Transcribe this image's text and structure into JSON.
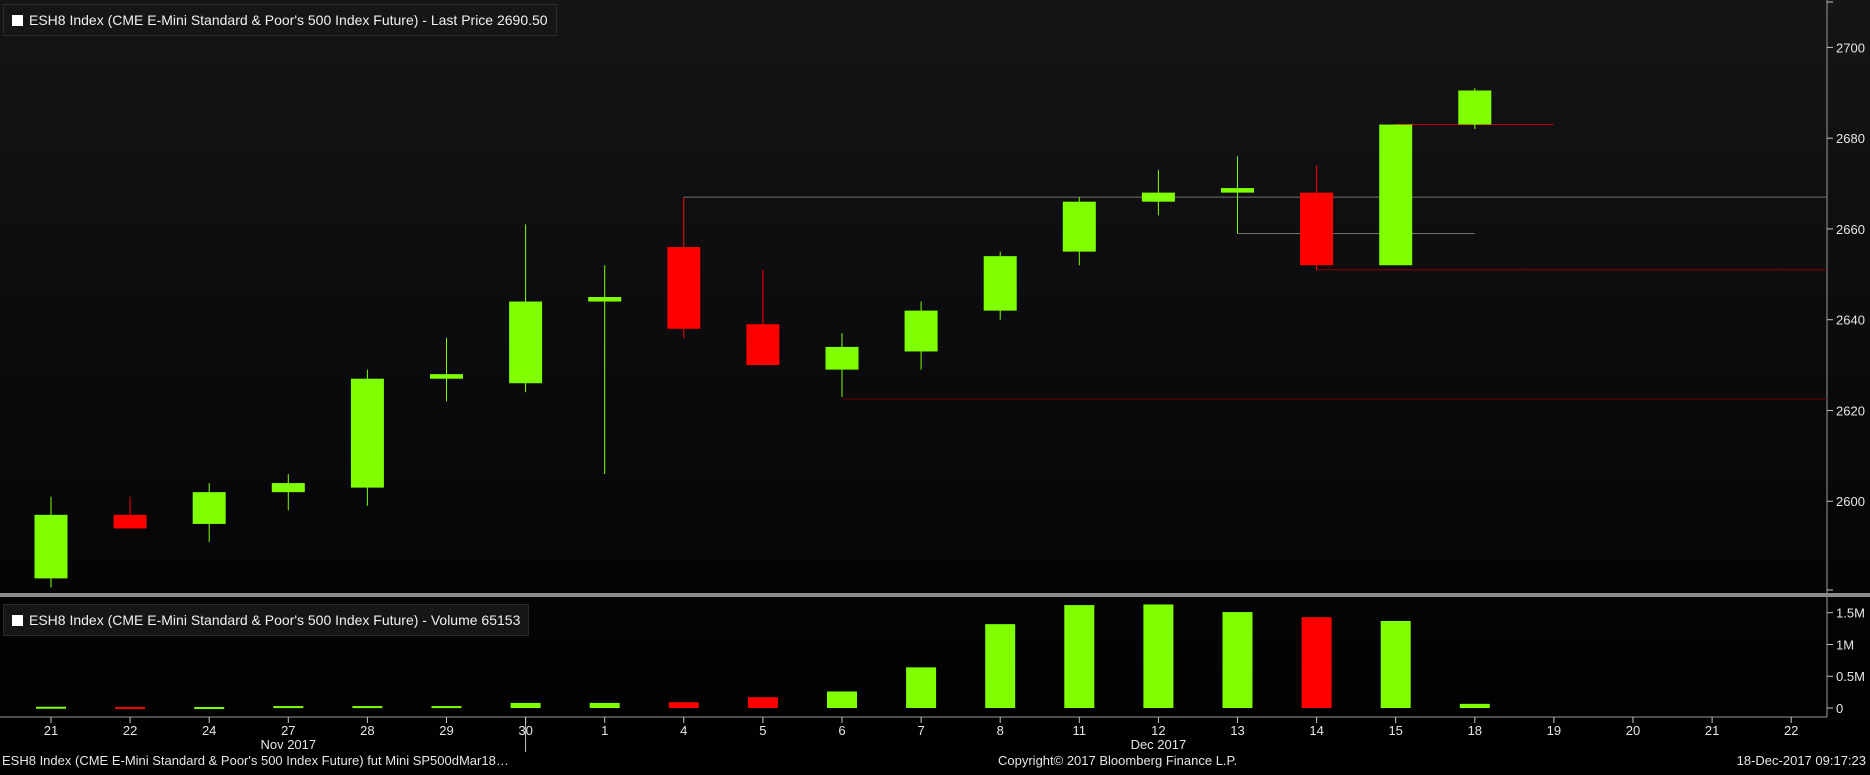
{
  "price_legend": "ESH8 Index (CME E-Mini Standard & Poor's 500 Index Future) - Last Price 2690.50",
  "volume_legend": "ESH8 Index (CME E-Mini Standard & Poor's 500 Index Future) - Volume 65153",
  "footer": {
    "left": "ESH8 Index (CME E-Mini Standard & Poor's 500 Index Future) fut Mini SP500dMar18…",
    "center": "Copyright© 2017 Bloomberg Finance L.P.",
    "right": "18-Dec-2017 09:17:23"
  },
  "colors": {
    "up": "#7fff00",
    "down": "#ff0000",
    "background": "#000000",
    "grid_line": "#707070"
  },
  "chart_data": [
    {
      "type": "candlestick",
      "ylim": [
        2580,
        2710
      ],
      "yticks": [
        2600,
        2620,
        2640,
        2660,
        2680,
        2700
      ],
      "categories": [
        "21",
        "22",
        "24",
        "27",
        "28",
        "29",
        "30",
        "1",
        "4",
        "5",
        "6",
        "7",
        "8",
        "11",
        "12",
        "13",
        "14",
        "15",
        "18",
        "19",
        "20",
        "21",
        "22"
      ],
      "month_labels": [
        {
          "label": "Nov 2017",
          "at": "27"
        },
        {
          "label": "Dec 2017",
          "at": "12"
        }
      ],
      "candles": [
        {
          "date": "21",
          "open": 2583,
          "high": 2601,
          "low": 2581,
          "close": 2597
        },
        {
          "date": "22",
          "open": 2597,
          "high": 2601,
          "low": 2594,
          "close": 2594
        },
        {
          "date": "24",
          "open": 2595,
          "high": 2604,
          "low": 2591,
          "close": 2602
        },
        {
          "date": "27",
          "open": 2602,
          "high": 2606,
          "low": 2598,
          "close": 2604
        },
        {
          "date": "28",
          "open": 2603,
          "high": 2629,
          "low": 2599,
          "close": 2627
        },
        {
          "date": "29",
          "open": 2627,
          "high": 2636,
          "low": 2622,
          "close": 2628
        },
        {
          "date": "30",
          "open": 2626,
          "high": 2661,
          "low": 2624,
          "close": 2644
        },
        {
          "date": "1",
          "open": 2644,
          "high": 2652,
          "low": 2606,
          "close": 2645
        },
        {
          "date": "4",
          "open": 2656,
          "high": 2667,
          "low": 2636,
          "close": 2638
        },
        {
          "date": "5",
          "open": 2639,
          "high": 2651,
          "low": 2630,
          "close": 2630
        },
        {
          "date": "6",
          "open": 2629,
          "high": 2637,
          "low": 2623,
          "close": 2634
        },
        {
          "date": "7",
          "open": 2633,
          "high": 2644,
          "low": 2629,
          "close": 2642
        },
        {
          "date": "8",
          "open": 2642,
          "high": 2655,
          "low": 2640,
          "close": 2654
        },
        {
          "date": "11",
          "open": 2655,
          "high": 2667,
          "low": 2652,
          "close": 2666
        },
        {
          "date": "12",
          "open": 2666,
          "high": 2673,
          "low": 2663,
          "close": 2668
        },
        {
          "date": "13",
          "open": 2668,
          "high": 2676,
          "low": 2659,
          "close": 2669
        },
        {
          "date": "14",
          "open": 2668,
          "high": 2674,
          "low": 2651,
          "close": 2652
        },
        {
          "date": "15",
          "open": 2652,
          "high": 2683,
          "low": 2652,
          "close": 2683
        },
        {
          "date": "18",
          "open": 2683,
          "high": 2691,
          "low": 2682,
          "close": 2690.5
        }
      ],
      "reference_lines": [
        {
          "value": 2667,
          "from": "4",
          "color": "#707070"
        },
        {
          "value": 2659,
          "from": "13",
          "to": "18",
          "color": "#707070"
        },
        {
          "value": 2651,
          "from": "14",
          "color": "#8a0000"
        },
        {
          "value": 2622.5,
          "from": "6",
          "color": "#6a0000"
        },
        {
          "value": 2683,
          "from": "15",
          "to": "19",
          "color": "#c00000"
        }
      ]
    },
    {
      "type": "bar",
      "ylim": [
        0,
        1700000
      ],
      "yticks": [
        {
          "value": 0,
          "label": "0"
        },
        {
          "value": 500000,
          "label": "0.5M"
        },
        {
          "value": 1000000,
          "label": "1M"
        },
        {
          "value": 1500000,
          "label": "1.5M"
        }
      ],
      "categories": [
        "21",
        "22",
        "24",
        "27",
        "28",
        "29",
        "30",
        "1",
        "4",
        "5",
        "6",
        "7",
        "8",
        "11",
        "12",
        "13",
        "14",
        "15",
        "18"
      ],
      "values": [
        20000,
        15000,
        15000,
        30000,
        30000,
        30000,
        80000,
        80000,
        90000,
        170000,
        260000,
        640000,
        1320000,
        1620000,
        1630000,
        1510000,
        1430000,
        1370000,
        65153
      ],
      "direction": [
        "up",
        "down",
        "up",
        "up",
        "up",
        "up",
        "up",
        "up",
        "down",
        "down",
        "up",
        "up",
        "up",
        "up",
        "up",
        "up",
        "down",
        "up",
        "up"
      ]
    }
  ]
}
